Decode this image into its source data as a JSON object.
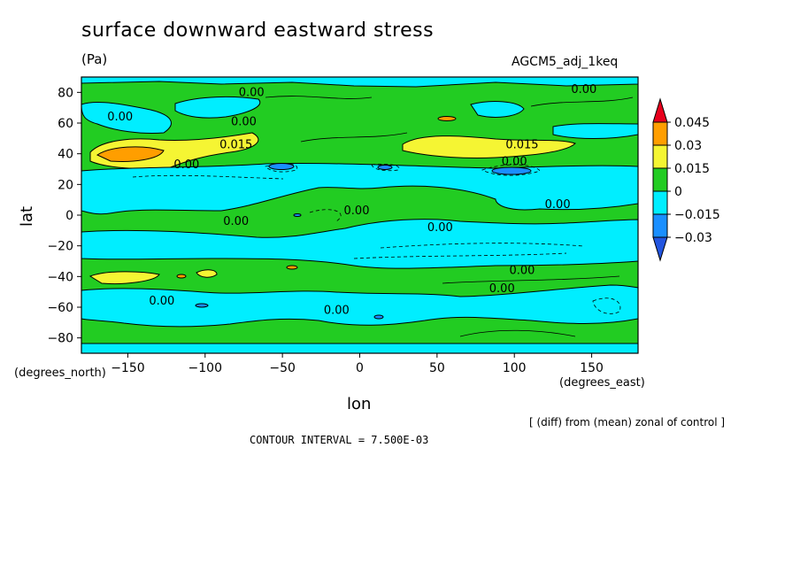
{
  "chart_data": {
    "type": "heatmap",
    "title": "surface downward eastward stress",
    "units": "(Pa)",
    "run_label": "AGCM5_adj_1keq",
    "xlabel": "lon",
    "ylabel": "lat",
    "x_units": "(degrees_east)",
    "y_units": "(degrees_north)",
    "xlim": [
      -180,
      180
    ],
    "ylim": [
      -90,
      90
    ],
    "x_ticks": [
      -150,
      -100,
      -50,
      0,
      50,
      100,
      150
    ],
    "y_ticks": [
      80,
      60,
      40,
      20,
      0,
      -20,
      -40,
      -60,
      -80
    ],
    "colorbar": {
      "levels": [
        -0.03,
        -0.015,
        0,
        0.015,
        0.03,
        0.045
      ],
      "labels": [
        "0.045",
        "0.03",
        "0.015",
        "0",
        "−0.015",
        "−0.03"
      ],
      "colors": [
        "#e8001c",
        "#ff9e00",
        "#f5f533",
        "#22cc22",
        "#00eeff",
        "#1a8fff",
        "#2255e0"
      ]
    },
    "contour_labels": [
      {
        "text": "0.00",
        "lon": -70,
        "lat": 80
      },
      {
        "text": "0.00",
        "lon": 145,
        "lat": 82
      },
      {
        "text": "0.00",
        "lon": -155,
        "lat": 64
      },
      {
        "text": "0.00",
        "lon": -75,
        "lat": 61
      },
      {
        "text": "0.015",
        "lon": -80,
        "lat": 46
      },
      {
        "text": "0.015",
        "lon": 105,
        "lat": 46
      },
      {
        "text": "0.00",
        "lon": -112,
        "lat": 33
      },
      {
        "text": "0.00",
        "lon": 100,
        "lat": 35
      },
      {
        "text": "0.00",
        "lon": -2,
        "lat": 3
      },
      {
        "text": "0.00",
        "lon": 128,
        "lat": 7
      },
      {
        "text": "0.00",
        "lon": -80,
        "lat": -4
      },
      {
        "text": "0.00",
        "lon": 52,
        "lat": -8
      },
      {
        "text": "0.00",
        "lon": 105,
        "lat": -36
      },
      {
        "text": "0.00",
        "lon": 92,
        "lat": -48
      },
      {
        "text": "0.00",
        "lon": -128,
        "lat": -56
      },
      {
        "text": "0.00",
        "lon": -15,
        "lat": -62
      }
    ],
    "note": "[ (diff) from (mean) zonal of control ]",
    "contour_interval": "CONTOUR INTERVAL = 7.500E-03",
    "grid": false
  }
}
